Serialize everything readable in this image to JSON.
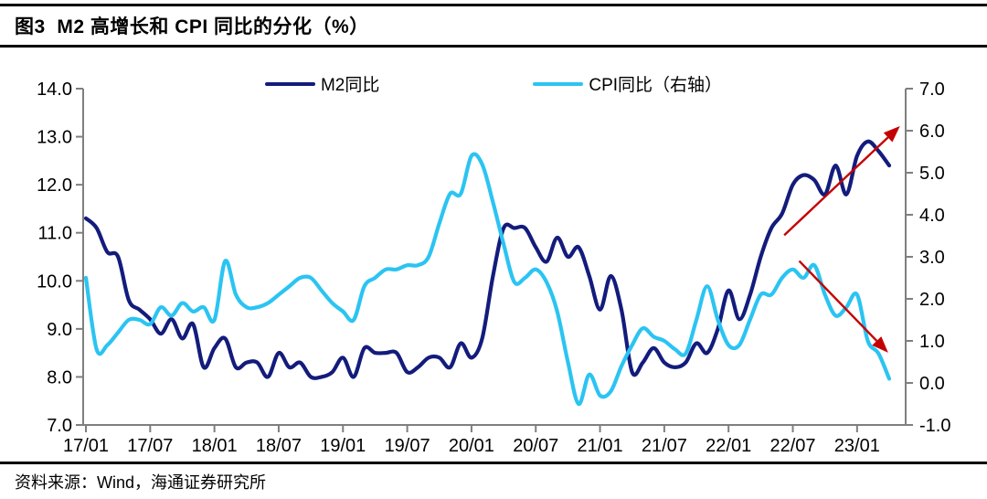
{
  "page": {
    "title": "图3  M2 高增长和 CPI 同比的分化（%）",
    "source_note": "资料来源：Wind，海通证券研究所"
  },
  "legend": [
    {
      "label": "M2同比",
      "color": "#131c7c"
    },
    {
      "label": "CPI同比（右轴）",
      "color": "#2bc4f2"
    }
  ],
  "chart_data": {
    "type": "line",
    "title": "图3 M2 高增长和 CPI 同比的分化（%）",
    "x_frequency": "monthly",
    "x_range": [
      "2017/01",
      "2023/04"
    ],
    "x_tick_labels": [
      "17/01",
      "17/07",
      "18/01",
      "18/07",
      "19/01",
      "19/07",
      "20/01",
      "20/07",
      "21/01",
      "21/07",
      "22/01",
      "22/07",
      "23/01"
    ],
    "x_tick_step_months": 6,
    "grid": "off",
    "legend_position": "top-center",
    "left_axis": {
      "min": 7.0,
      "max": 14.0,
      "tick_step": 1.0,
      "tick_labels": [
        "14.0",
        "13.0",
        "12.0",
        "11.0",
        "10.0",
        "9.0",
        "8.0",
        "7.0"
      ]
    },
    "right_axis": {
      "min": -1.0,
      "max": 7.0,
      "tick_step": 1.0,
      "tick_labels": [
        "7.0",
        "6.0",
        "5.0",
        "4.0",
        "3.0",
        "2.0",
        "1.0",
        "0.0",
        "-1.0"
      ]
    },
    "series": [
      {
        "name": "M2同比",
        "axis": "left",
        "color": "#131c7c",
        "smooth": true,
        "values": [
          11.3,
          11.1,
          10.6,
          10.5,
          9.6,
          9.4,
          9.2,
          8.9,
          9.2,
          8.8,
          9.1,
          8.2,
          8.6,
          8.8,
          8.2,
          8.3,
          8.3,
          8.0,
          8.5,
          8.2,
          8.3,
          8.0,
          8.0,
          8.1,
          8.4,
          8.0,
          8.6,
          8.5,
          8.5,
          8.5,
          8.1,
          8.2,
          8.4,
          8.4,
          8.2,
          8.7,
          8.4,
          8.8,
          10.1,
          11.1,
          11.1,
          11.1,
          10.7,
          10.4,
          10.9,
          10.5,
          10.7,
          10.1,
          9.4,
          10.1,
          9.4,
          8.1,
          8.3,
          8.6,
          8.3,
          8.2,
          8.3,
          8.7,
          8.5,
          9.0,
          9.8,
          9.2,
          9.7,
          10.5,
          11.1,
          11.4,
          12.0,
          12.2,
          12.1,
          11.8,
          12.4,
          11.8,
          12.6,
          12.9,
          12.7,
          12.4
        ]
      },
      {
        "name": "CPI同比（右轴）",
        "axis": "right",
        "color": "#2bc4f2",
        "smooth": true,
        "values": [
          2.5,
          0.8,
          0.9,
          1.2,
          1.5,
          1.5,
          1.4,
          1.8,
          1.6,
          1.9,
          1.7,
          1.8,
          1.5,
          2.9,
          2.1,
          1.8,
          1.8,
          1.9,
          2.1,
          2.3,
          2.5,
          2.5,
          2.2,
          1.9,
          1.7,
          1.5,
          2.3,
          2.5,
          2.7,
          2.7,
          2.8,
          2.8,
          3.0,
          3.8,
          4.5,
          4.5,
          5.4,
          5.2,
          4.3,
          3.3,
          2.4,
          2.5,
          2.7,
          2.4,
          1.7,
          0.5,
          -0.5,
          0.2,
          -0.3,
          -0.2,
          0.4,
          0.9,
          1.3,
          1.1,
          1.0,
          0.8,
          0.7,
          1.5,
          2.3,
          1.5,
          0.9,
          0.9,
          1.5,
          2.1,
          2.1,
          2.5,
          2.7,
          2.5,
          2.8,
          2.1,
          1.6,
          1.8,
          2.1,
          1.0,
          0.7,
          0.1
        ]
      }
    ],
    "annotations": {
      "arrow_color": "#c40000",
      "arrows": [
        {
          "name": "m2-uptrend-arrow",
          "axis": "left",
          "from": {
            "month": 65.2,
            "value": 10.95
          },
          "to": {
            "month": 76.0,
            "value": 13.22
          }
        },
        {
          "name": "cpi-downtrend-arrow",
          "axis": "right",
          "from": {
            "month": 66.6,
            "value": 2.9
          },
          "to": {
            "month": 74.9,
            "value": 0.72
          }
        }
      ]
    },
    "axis_line_color": "#7f7f7f",
    "tick_text_color": "#000000"
  }
}
